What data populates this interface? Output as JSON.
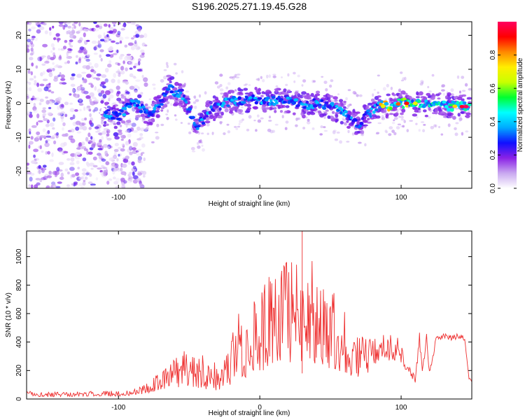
{
  "title": "S196.2025.271.19.45.G28",
  "chart_data": [
    {
      "type": "heatmap",
      "xlabel": "Height of straight line (km)",
      "ylabel": "Frequency (Hz)",
      "xlim": [
        -165,
        150
      ],
      "ylim": [
        -25,
        24
      ],
      "xticks": [
        -100,
        0,
        100
      ],
      "xtick_labels": [
        "-100",
        "0",
        "100"
      ],
      "yticks": [
        -20,
        -10,
        0,
        10,
        20
      ],
      "ytick_labels": [
        "-20",
        "-10",
        "0",
        "10",
        "20"
      ],
      "ridge_points": [
        [
          -112,
          -2.5
        ],
        [
          -100,
          -4
        ],
        [
          -90,
          0
        ],
        [
          -85,
          -1
        ],
        [
          -78,
          -4
        ],
        [
          -70,
          0
        ],
        [
          -64,
          5
        ],
        [
          -60,
          3
        ],
        [
          -55,
          3
        ],
        [
          -50,
          -2
        ],
        [
          -45,
          -7
        ],
        [
          -40,
          -5
        ],
        [
          -35,
          -2
        ],
        [
          -30,
          -1
        ],
        [
          -25,
          0
        ],
        [
          -20,
          0.5
        ],
        [
          -10,
          1
        ],
        [
          0,
          1
        ],
        [
          10,
          0.5
        ],
        [
          20,
          1
        ],
        [
          30,
          -0.5
        ],
        [
          40,
          0
        ],
        [
          50,
          -1
        ],
        [
          55,
          -2
        ],
        [
          60,
          -3
        ],
        [
          65,
          -5
        ],
        [
          70,
          -6
        ],
        [
          75,
          -4
        ],
        [
          80,
          -2
        ],
        [
          85,
          0
        ],
        [
          90,
          -1
        ],
        [
          100,
          0
        ],
        [
          110,
          0
        ],
        [
          120,
          -0.5
        ],
        [
          130,
          -0.5
        ],
        [
          140,
          -1
        ]
      ],
      "colorbar": {
        "label": "Normalized spectral amplitude",
        "range": [
          0,
          1
        ],
        "ticks": [
          0.0,
          0.2,
          0.4,
          0.6,
          0.8
        ],
        "tick_labels": [
          "0.0",
          "0.2",
          "0.4",
          "0.6",
          "0.8"
        ],
        "colors": [
          "#ffffff",
          "#c9a8f0",
          "#8a22e6",
          "#1010ff",
          "#00aaff",
          "#00ffff",
          "#00ff30",
          "#c8ff00",
          "#ffee00",
          "#ff8800",
          "#ff0000",
          "#ff0060"
        ]
      }
    },
    {
      "type": "line",
      "xlabel": "Height of straight line (km)",
      "ylabel": "SNR (10 * v/v)",
      "xlim": [
        -165,
        150
      ],
      "ylim": [
        0,
        1180
      ],
      "xticks": [
        -100,
        0,
        100
      ],
      "xtick_labels": [
        "-100",
        "0",
        "100"
      ],
      "yticks": [
        0,
        200,
        400,
        600,
        800,
        1000
      ],
      "ytick_labels": [
        "0",
        "200",
        "400",
        "600",
        "800",
        "1000"
      ],
      "color": "#ee3030",
      "envelope": {
        "x": [
          -165,
          -150,
          -120,
          -100,
          -90,
          -80,
          -70,
          -60,
          -50,
          -40,
          -30,
          -20,
          -15,
          -10,
          -5,
          0,
          5,
          10,
          15,
          20,
          25,
          30,
          35,
          40,
          45,
          50,
          55,
          60,
          65,
          70,
          75,
          80,
          85,
          90,
          95,
          100,
          103,
          105,
          108,
          110,
          113,
          115,
          118,
          120,
          125,
          130,
          135,
          140,
          145,
          148,
          150
        ],
        "low": [
          20,
          15,
          20,
          20,
          25,
          40,
          60,
          80,
          90,
          70,
          60,
          100,
          150,
          150,
          180,
          180,
          200,
          220,
          230,
          240,
          250,
          260,
          230,
          250,
          220,
          200,
          200,
          180,
          160,
          150,
          160,
          230,
          260,
          240,
          260,
          240,
          60,
          130,
          70,
          40,
          280,
          80,
          380,
          100,
          360,
          380,
          360,
          370,
          360,
          100,
          120
        ],
        "high": [
          60,
          50,
          55,
          60,
          60,
          120,
          200,
          300,
          360,
          340,
          250,
          480,
          600,
          620,
          700,
          780,
          850,
          980,
          900,
          1000,
          1030,
          1180,
          1000,
          980,
          900,
          800,
          760,
          680,
          560,
          480,
          440,
          440,
          440,
          460,
          450,
          440,
          220,
          240,
          190,
          160,
          470,
          200,
          460,
          200,
          450,
          460,
          450,
          460,
          450,
          170,
          120
        ]
      }
    }
  ]
}
